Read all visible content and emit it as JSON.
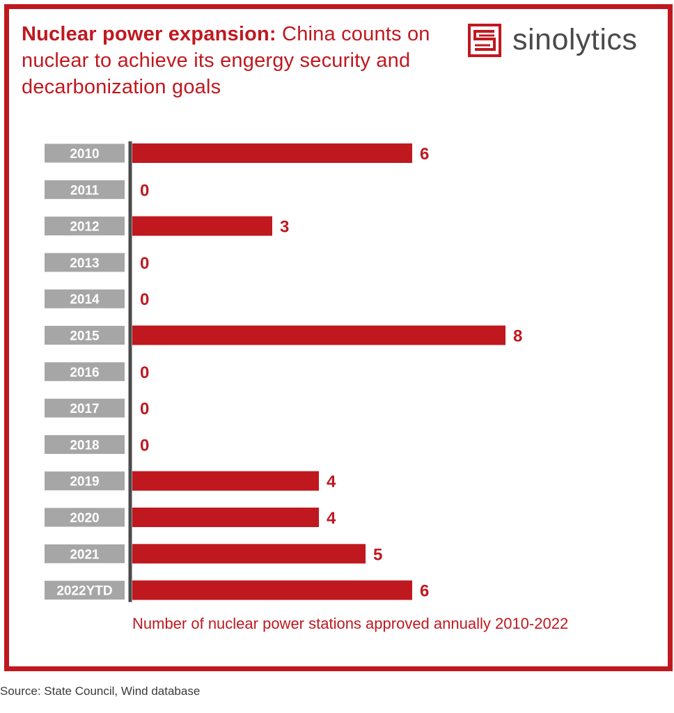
{
  "header": {
    "title_lead": "Nuclear power expansion:",
    "title_rest": " China counts on nuclear to achieve its engergy security and decarbonization goals"
  },
  "logo": {
    "icon": "sinolytics-s-icon",
    "text": "sinolytics"
  },
  "source": "Source: State Council, Wind database",
  "colors": {
    "accent": "#c0181f",
    "label_bg": "#a6a6a6",
    "axis": "#4a4a4a"
  },
  "chart_data": {
    "type": "bar",
    "orientation": "horizontal",
    "categories": [
      "2010",
      "2011",
      "2012",
      "2013",
      "2014",
      "2015",
      "2016",
      "2017",
      "2018",
      "2019",
      "2020",
      "2021",
      "2022YTD"
    ],
    "values": [
      6,
      0,
      3,
      0,
      0,
      8,
      0,
      0,
      0,
      4,
      4,
      5,
      6
    ],
    "data_labels": [
      "6",
      "0",
      "3",
      "0",
      "0",
      "8",
      "0",
      "0",
      "0",
      "4",
      "4",
      "5",
      "6"
    ],
    "caption": "Number of nuclear power stations approved annually 2010-2022",
    "grid": false,
    "legend": "none"
  }
}
